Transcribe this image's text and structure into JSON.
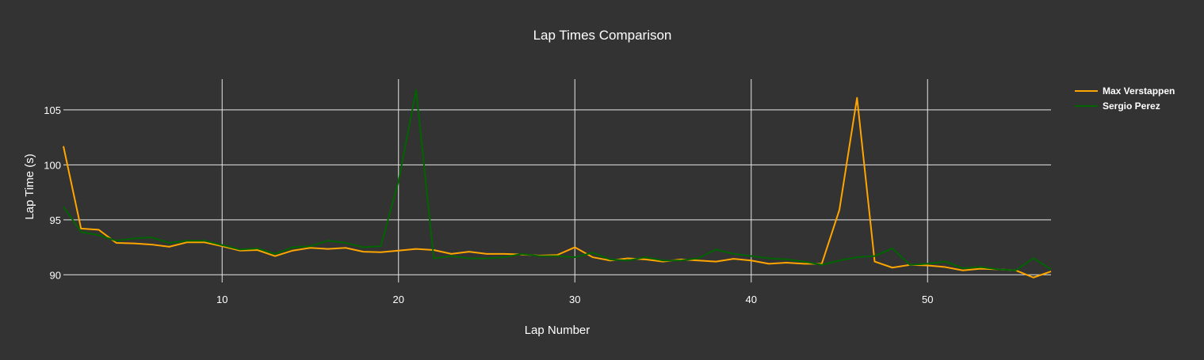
{
  "chart_data": {
    "type": "line",
    "title": "Lap Times Comparison",
    "xlabel": "Lap Number",
    "ylabel": "Lap Time (s)",
    "xlim": [
      1,
      57
    ],
    "ylim": [
      89.3,
      107.8
    ],
    "x_ticks": [
      10,
      20,
      30,
      40,
      50
    ],
    "y_ticks": [
      90,
      95,
      100,
      105
    ],
    "grid": true,
    "legend_position": "top-right",
    "colors": {
      "background": "#333333",
      "grid": "#e6e6e6",
      "text": "#ffffff"
    },
    "x": [
      1,
      2,
      3,
      4,
      5,
      6,
      7,
      8,
      9,
      10,
      11,
      12,
      13,
      14,
      15,
      16,
      17,
      18,
      19,
      20,
      21,
      22,
      23,
      24,
      25,
      26,
      27,
      28,
      29,
      30,
      31,
      32,
      33,
      34,
      35,
      36,
      37,
      38,
      39,
      40,
      41,
      42,
      43,
      44,
      45,
      46,
      47,
      48,
      49,
      50,
      51,
      52,
      53,
      54,
      55,
      56,
      57
    ],
    "series": [
      {
        "name": "Max Verstappen",
        "color": "#ffa500",
        "values": [
          101.7,
          94.2,
          94.1,
          92.9,
          92.85,
          92.75,
          92.55,
          92.95,
          92.95,
          92.6,
          92.2,
          92.25,
          91.7,
          92.2,
          92.45,
          92.35,
          92.45,
          92.1,
          92.05,
          92.2,
          92.35,
          92.25,
          91.9,
          92.1,
          91.9,
          91.9,
          91.85,
          91.75,
          91.8,
          92.5,
          91.6,
          91.3,
          91.5,
          91.4,
          91.2,
          91.4,
          91.3,
          91.2,
          91.45,
          91.3,
          91.0,
          91.1,
          91.0,
          91.0,
          95.9,
          106.1,
          91.2,
          90.65,
          90.9,
          90.85,
          90.7,
          90.4,
          90.55,
          90.5,
          90.4,
          89.75,
          90.3
        ]
      },
      {
        "name": "Sergio Perez",
        "color": "#006400",
        "values": [
          96.2,
          93.9,
          93.6,
          93.1,
          93.3,
          93.4,
          92.9,
          93.1,
          93.1,
          92.7,
          92.3,
          92.4,
          91.9,
          92.5,
          92.6,
          93.1,
          92.9,
          92.5,
          92.6,
          98.5,
          106.8,
          91.5,
          91.7,
          91.5,
          91.5,
          91.6,
          91.9,
          91.7,
          91.7,
          91.6,
          92.0,
          91.4,
          91.3,
          91.6,
          91.3,
          91.3,
          91.5,
          92.3,
          91.9,
          91.7,
          91.5,
          91.4,
          91.2,
          90.9,
          91.3,
          91.6,
          91.7,
          92.4,
          90.9,
          91.0,
          91.2,
          90.6,
          90.7,
          90.5,
          90.4,
          91.5,
          90.5
        ]
      }
    ]
  }
}
